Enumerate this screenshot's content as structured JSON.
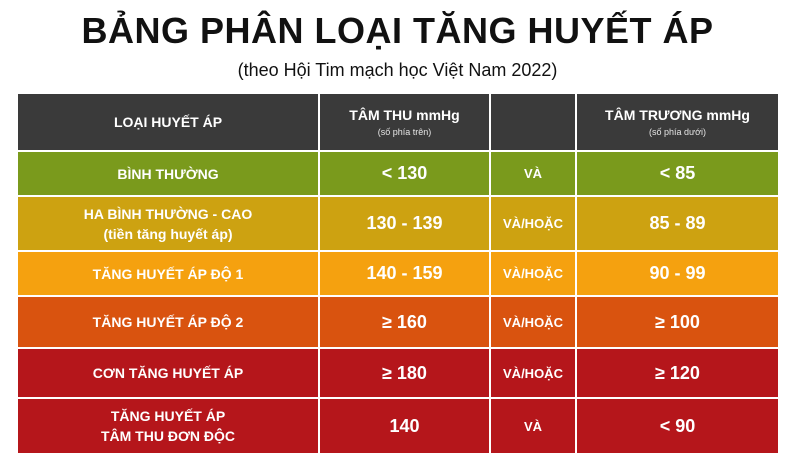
{
  "title": "BẢNG PHÂN LOẠI TĂNG HUYẾT ÁP",
  "subtitle": "(theo Hội Tim mạch học Việt Nam 2022)",
  "header": {
    "col1": "LOẠI HUYẾT ÁP",
    "col2": "TÂM THU mmHg",
    "col2_sub": "(số phía trên)",
    "col3": "",
    "col4": "TÂM TRƯƠNG mmHg",
    "col4_sub": "(số phía dưới)"
  },
  "rows": [
    {
      "label": "BÌNH THƯỜNG",
      "label2": "",
      "systolic": "< 130",
      "conj": "VÀ",
      "diastolic": "< 85",
      "color": "#7a9a1c"
    },
    {
      "label": "HA BÌNH THƯỜNG - CAO",
      "label2": "(tiền tăng huyết áp)",
      "systolic": "130 - 139",
      "conj": "VÀ/HOẶC",
      "diastolic": "85 - 89",
      "color": "#cda211"
    },
    {
      "label": "TĂNG HUYẾT ÁP ĐỘ 1",
      "label2": "",
      "systolic": "140 - 159",
      "conj": "VÀ/HOẶC",
      "diastolic": "90 - 99",
      "color": "#f5a10f"
    },
    {
      "label": "TĂNG HUYẾT ÁP ĐỘ 2",
      "label2": "",
      "systolic": "≥ 160",
      "conj": "VÀ/HOẶC",
      "diastolic": "≥ 100",
      "color": "#d9530f"
    },
    {
      "label": "CƠN TĂNG HUYẾT ÁP",
      "label2": "",
      "systolic": "≥ 180",
      "conj": "VÀ/HOẶC",
      "diastolic": "≥ 120",
      "color": "#b5161b"
    },
    {
      "label": "TĂNG HUYẾT ÁP",
      "label2": "TÂM THU ĐƠN ĐỘC",
      "systolic": "140",
      "conj": "VÀ",
      "diastolic": "< 90",
      "color": "#b5161b"
    }
  ]
}
